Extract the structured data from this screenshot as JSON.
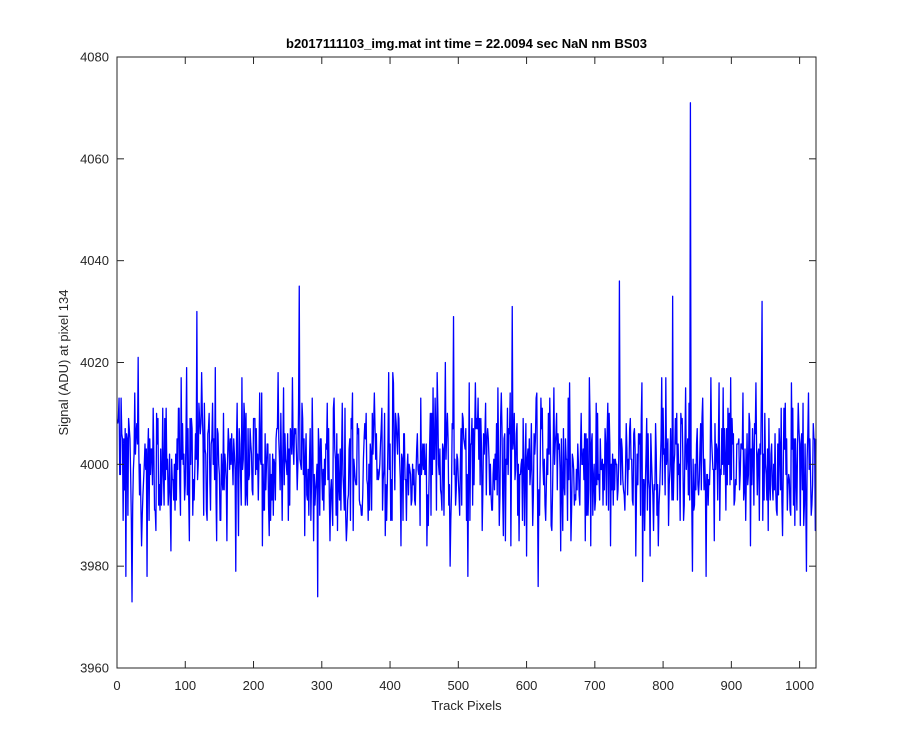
{
  "chart_data": {
    "type": "line",
    "title": "b2017111103_img.mat int time = 22.0094 sec  NaN nm BS03",
    "xlabel": "Track Pixels",
    "ylabel": "Signal (ADU) at pixel 134",
    "xlim": [
      0,
      1024
    ],
    "ylim": [
      3960,
      4080
    ],
    "xticks": [
      0,
      100,
      200,
      300,
      400,
      500,
      600,
      700,
      800,
      900,
      1000
    ],
    "yticks": [
      3960,
      3980,
      4000,
      4020,
      4040,
      4060,
      4080
    ],
    "grid": false,
    "series": [
      {
        "color": "#0000ff",
        "x_start": 1,
        "x_step": 1,
        "noise": {
          "count": 1024,
          "mean": 4000.5,
          "std": 7.5,
          "min": 3974,
          "max": 4036,
          "seed": 20171111
        },
        "values": [
          [
            3,
            4013
          ],
          [
            13,
            3978
          ],
          [
            22,
            3973
          ],
          [
            31,
            4021
          ],
          [
            117,
            4030
          ],
          [
            267,
            4035
          ],
          [
            294,
            3974
          ],
          [
            493,
            4029
          ],
          [
            579,
            4031
          ],
          [
            617,
            3976
          ],
          [
            736,
            4036
          ],
          [
            770,
            3977
          ],
          [
            814,
            4033
          ],
          [
            840,
            4071
          ],
          [
            843,
            3979
          ],
          [
            863,
            3978
          ],
          [
            945,
            4032
          ],
          [
            1010,
            3979
          ]
        ]
      }
    ]
  }
}
